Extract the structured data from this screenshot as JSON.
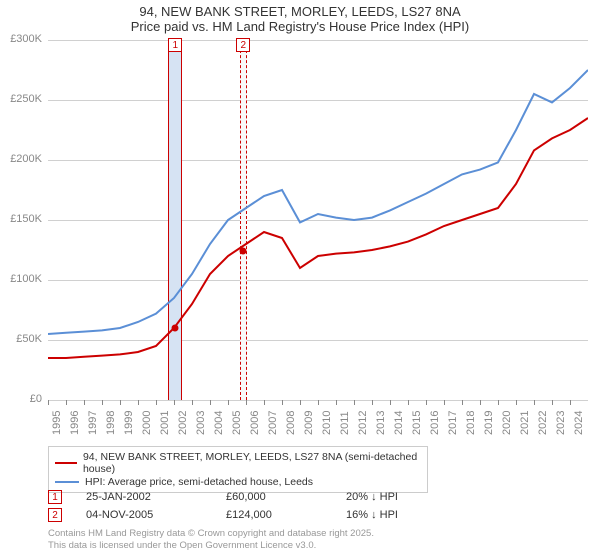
{
  "title": {
    "line1": "94, NEW BANK STREET, MORLEY, LEEDS, LS27 8NA",
    "line2": "Price paid vs. HM Land Registry's House Price Index (HPI)"
  },
  "chart": {
    "type": "line",
    "x_range": [
      1995,
      2025
    ],
    "y_range": [
      0,
      300000
    ],
    "y_ticks": [
      0,
      50000,
      100000,
      150000,
      200000,
      250000,
      300000
    ],
    "y_tick_labels": [
      "£0",
      "£50K",
      "£100K",
      "£150K",
      "£200K",
      "£250K",
      "£300K"
    ],
    "x_ticks": [
      1995,
      1996,
      1997,
      1998,
      1999,
      2000,
      2001,
      2002,
      2003,
      2004,
      2005,
      2006,
      2007,
      2008,
      2009,
      2010,
      2011,
      2012,
      2013,
      2014,
      2015,
      2016,
      2017,
      2018,
      2019,
      2020,
      2021,
      2022,
      2023,
      2024
    ],
    "grid_color": "#d0d0d0",
    "background_color": "#ffffff",
    "axis_label_color": "#888888",
    "axis_fontsize": 11,
    "series": [
      {
        "name": "94, NEW BANK STREET, MORLEY, LEEDS, LS27 8NA (semi-detached house)",
        "color": "#cc0000",
        "line_width": 2,
        "data": [
          [
            1995,
            35000
          ],
          [
            1996,
            35000
          ],
          [
            1997,
            36000
          ],
          [
            1998,
            37000
          ],
          [
            1999,
            38000
          ],
          [
            2000,
            40000
          ],
          [
            2001,
            45000
          ],
          [
            2002,
            60000
          ],
          [
            2003,
            80000
          ],
          [
            2004,
            105000
          ],
          [
            2005,
            120000
          ],
          [
            2006,
            130000
          ],
          [
            2007,
            140000
          ],
          [
            2008,
            135000
          ],
          [
            2009,
            110000
          ],
          [
            2010,
            120000
          ],
          [
            2011,
            122000
          ],
          [
            2012,
            123000
          ],
          [
            2013,
            125000
          ],
          [
            2014,
            128000
          ],
          [
            2015,
            132000
          ],
          [
            2016,
            138000
          ],
          [
            2017,
            145000
          ],
          [
            2018,
            150000
          ],
          [
            2019,
            155000
          ],
          [
            2020,
            160000
          ],
          [
            2021,
            180000
          ],
          [
            2022,
            208000
          ],
          [
            2023,
            218000
          ],
          [
            2024,
            225000
          ],
          [
            2025,
            235000
          ]
        ]
      },
      {
        "name": "HPI: Average price, semi-detached house, Leeds",
        "color": "#5b8fd6",
        "line_width": 2,
        "data": [
          [
            1995,
            55000
          ],
          [
            1996,
            56000
          ],
          [
            1997,
            57000
          ],
          [
            1998,
            58000
          ],
          [
            1999,
            60000
          ],
          [
            2000,
            65000
          ],
          [
            2001,
            72000
          ],
          [
            2002,
            85000
          ],
          [
            2003,
            105000
          ],
          [
            2004,
            130000
          ],
          [
            2005,
            150000
          ],
          [
            2006,
            160000
          ],
          [
            2007,
            170000
          ],
          [
            2008,
            175000
          ],
          [
            2009,
            148000
          ],
          [
            2010,
            155000
          ],
          [
            2011,
            152000
          ],
          [
            2012,
            150000
          ],
          [
            2013,
            152000
          ],
          [
            2014,
            158000
          ],
          [
            2015,
            165000
          ],
          [
            2016,
            172000
          ],
          [
            2017,
            180000
          ],
          [
            2018,
            188000
          ],
          [
            2019,
            192000
          ],
          [
            2020,
            198000
          ],
          [
            2021,
            225000
          ],
          [
            2022,
            255000
          ],
          [
            2023,
            248000
          ],
          [
            2024,
            260000
          ],
          [
            2025,
            275000
          ]
        ]
      }
    ],
    "bands": [
      {
        "x": 2002.07,
        "width_years": 0.8,
        "color": "#d6e3f3",
        "border_color": "#cc0000",
        "label": "1"
      },
      {
        "x": 2005.85,
        "width_years": 0.4,
        "color": "#f8f8f8",
        "border_color": "#cc0000",
        "label": "2",
        "dashed": true
      }
    ],
    "marker_points": [
      {
        "x": 2002.07,
        "y": 60000,
        "color": "#cc0000"
      },
      {
        "x": 2005.85,
        "y": 124000,
        "color": "#cc0000"
      }
    ]
  },
  "legend": {
    "items": [
      {
        "color": "#cc0000",
        "label": "94, NEW BANK STREET, MORLEY, LEEDS, LS27 8NA (semi-detached house)"
      },
      {
        "color": "#5b8fd6",
        "label": "HPI: Average price, semi-detached house, Leeds"
      }
    ]
  },
  "markers_table": {
    "rows": [
      {
        "num": "1",
        "border_color": "#cc0000",
        "date": "25-JAN-2002",
        "price": "£60,000",
        "diff": "20% ↓ HPI"
      },
      {
        "num": "2",
        "border_color": "#cc0000",
        "date": "04-NOV-2005",
        "price": "£124,000",
        "diff": "16% ↓ HPI"
      }
    ]
  },
  "footer": {
    "line1": "Contains HM Land Registry data © Crown copyright and database right 2025.",
    "line2": "This data is licensed under the Open Government Licence v3.0."
  }
}
